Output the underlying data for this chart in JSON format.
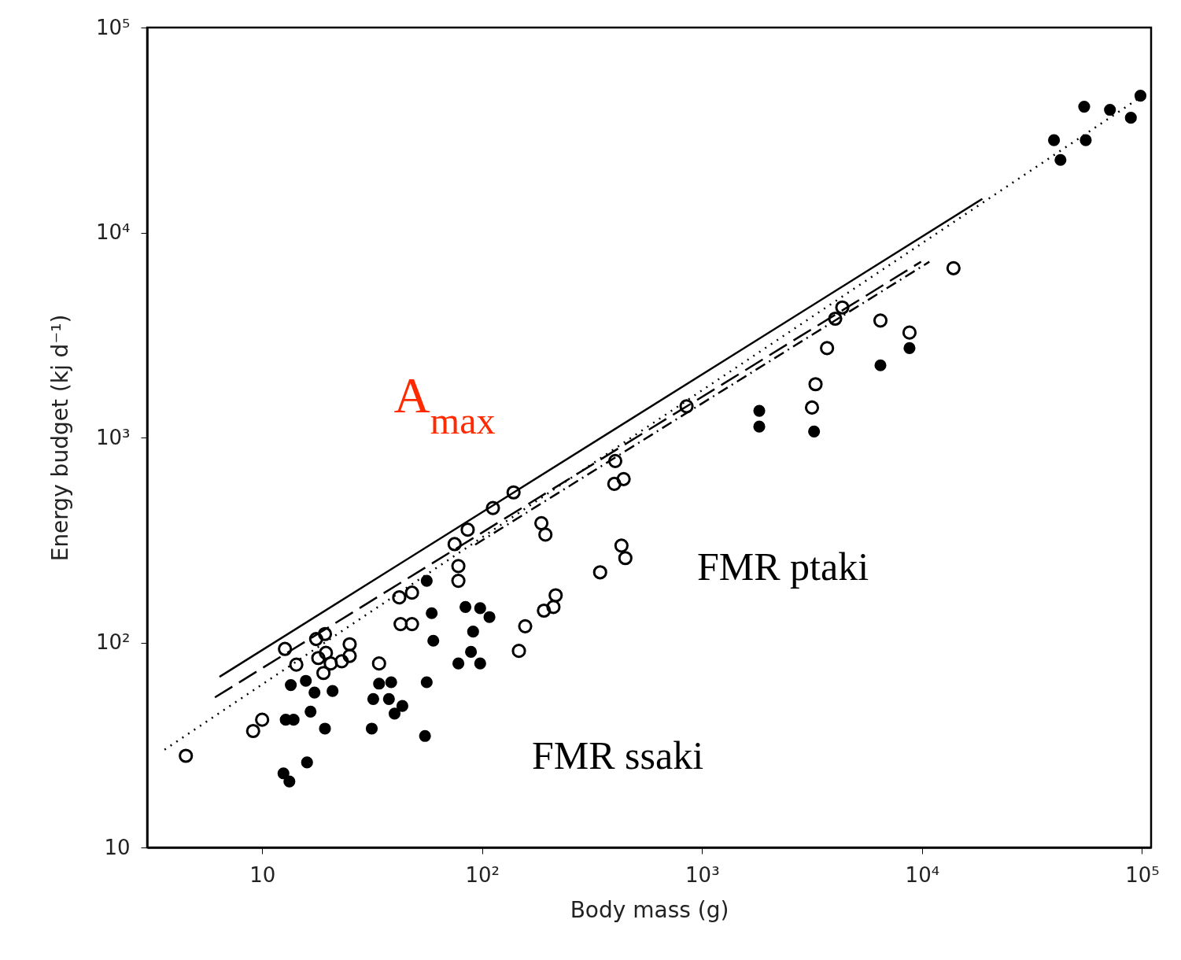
{
  "chart_data": {
    "type": "scatter",
    "xlabel": "Body mass (g)",
    "ylabel": "Energy budget (kj d⁻¹)",
    "log": "xy",
    "grid": false,
    "xlim": [
      3,
      110000
    ],
    "ylim": [
      10,
      100000
    ],
    "xticks": [
      10,
      {
        "value": 100,
        "label": "10²"
      },
      {
        "value": 1000,
        "label": "10³"
      },
      {
        "value": 10000,
        "label": "10⁴"
      },
      {
        "value": 100000,
        "label": "10⁵"
      }
    ],
    "yticks": [
      10,
      {
        "value": 100,
        "label": "10²"
      },
      {
        "value": 1000,
        "label": "10³"
      },
      {
        "value": 10000,
        "label": "10⁴"
      },
      {
        "value": 100000,
        "label": "10⁵"
      }
    ],
    "series": [
      {
        "color": "#000000",
        "marker": "circle",
        "x": [
          4.5,
          9.1,
          10,
          12.7,
          14.3,
          17.6,
          19.3,
          18,
          19.5,
          19,
          20.5,
          23,
          25,
          25,
          34,
          42,
          42.6,
          48,
          48,
          78,
          78,
          75,
          86,
          112,
          139,
          186,
          194,
          157,
          147,
          191,
          211,
          216,
          344,
          403,
          399,
          440,
          430,
          448,
          850,
          3280,
          3160,
          3700,
          4030,
          4340,
          6470,
          8770,
          13900
        ],
        "values": [
          28,
          37,
          42,
          93,
          78,
          104,
          110,
          84,
          89,
          71,
          79,
          81,
          98,
          86,
          79,
          166,
          123,
          175,
          123,
          236,
          200,
          302,
          355,
          453,
          540,
          382,
          336,
          120,
          91,
          143,
          149,
          170,
          220,
          768,
          594,
          627,
          297,
          258,
          1420,
          1820,
          1400,
          2730,
          3800,
          4310,
          3720,
          3250,
          6700
        ]
      },
      {
        "color": "#000000",
        "marker": "circle",
        "x": [
          13.5,
          15.8,
          17.3,
          20.9,
          16.6,
          12.8,
          13.9,
          19.3,
          16,
          12.5,
          13.3,
          34,
          38.6,
          32,
          37.7,
          43.4,
          40,
          31.5,
          56,
          59,
          60,
          56,
          55,
          84,
          98,
          108,
          91,
          89,
          78,
          98,
          1820,
          1820,
          3230,
          6470,
          8770,
          39800,
          42600,
          54600,
          55500,
          71500,
          89000,
          98400
        ],
        "values": [
          62,
          65,
          57,
          58,
          46,
          42,
          42,
          38,
          26,
          23,
          21,
          63,
          64,
          53,
          53,
          49,
          45,
          38,
          200,
          139,
          102,
          64,
          35,
          149,
          147,
          133,
          113,
          90,
          79,
          79,
          1350,
          1130,
          1070,
          2250,
          2730,
          28200,
          22600,
          41100,
          28200,
          39700,
          36300,
          46500
        ]
      },
      {
        "type": "line",
        "color": "#000000",
        "line_style": "solid",
        "x": [
          6.4,
          18800
        ],
        "values": [
          68,
          14600
        ]
      },
      {
        "type": "line",
        "color": "#000000",
        "line_style": "dashed",
        "x": [
          6.1,
          9900
        ],
        "values": [
          54,
          7200
        ]
      },
      {
        "type": "line",
        "color": "#000000",
        "line_style": "dotted",
        "x": [
          3.6,
          98400
        ],
        "values": [
          30,
          45700
        ]
      },
      {
        "type": "line",
        "color": "#000000",
        "line_style": "dashdot",
        "x": [
          93,
          10800
        ],
        "values": [
          300,
          7200
        ]
      }
    ],
    "annotations": [
      "A$_{max}$",
      "FMR ptaki",
      "FMR ssaki"
    ]
  }
}
